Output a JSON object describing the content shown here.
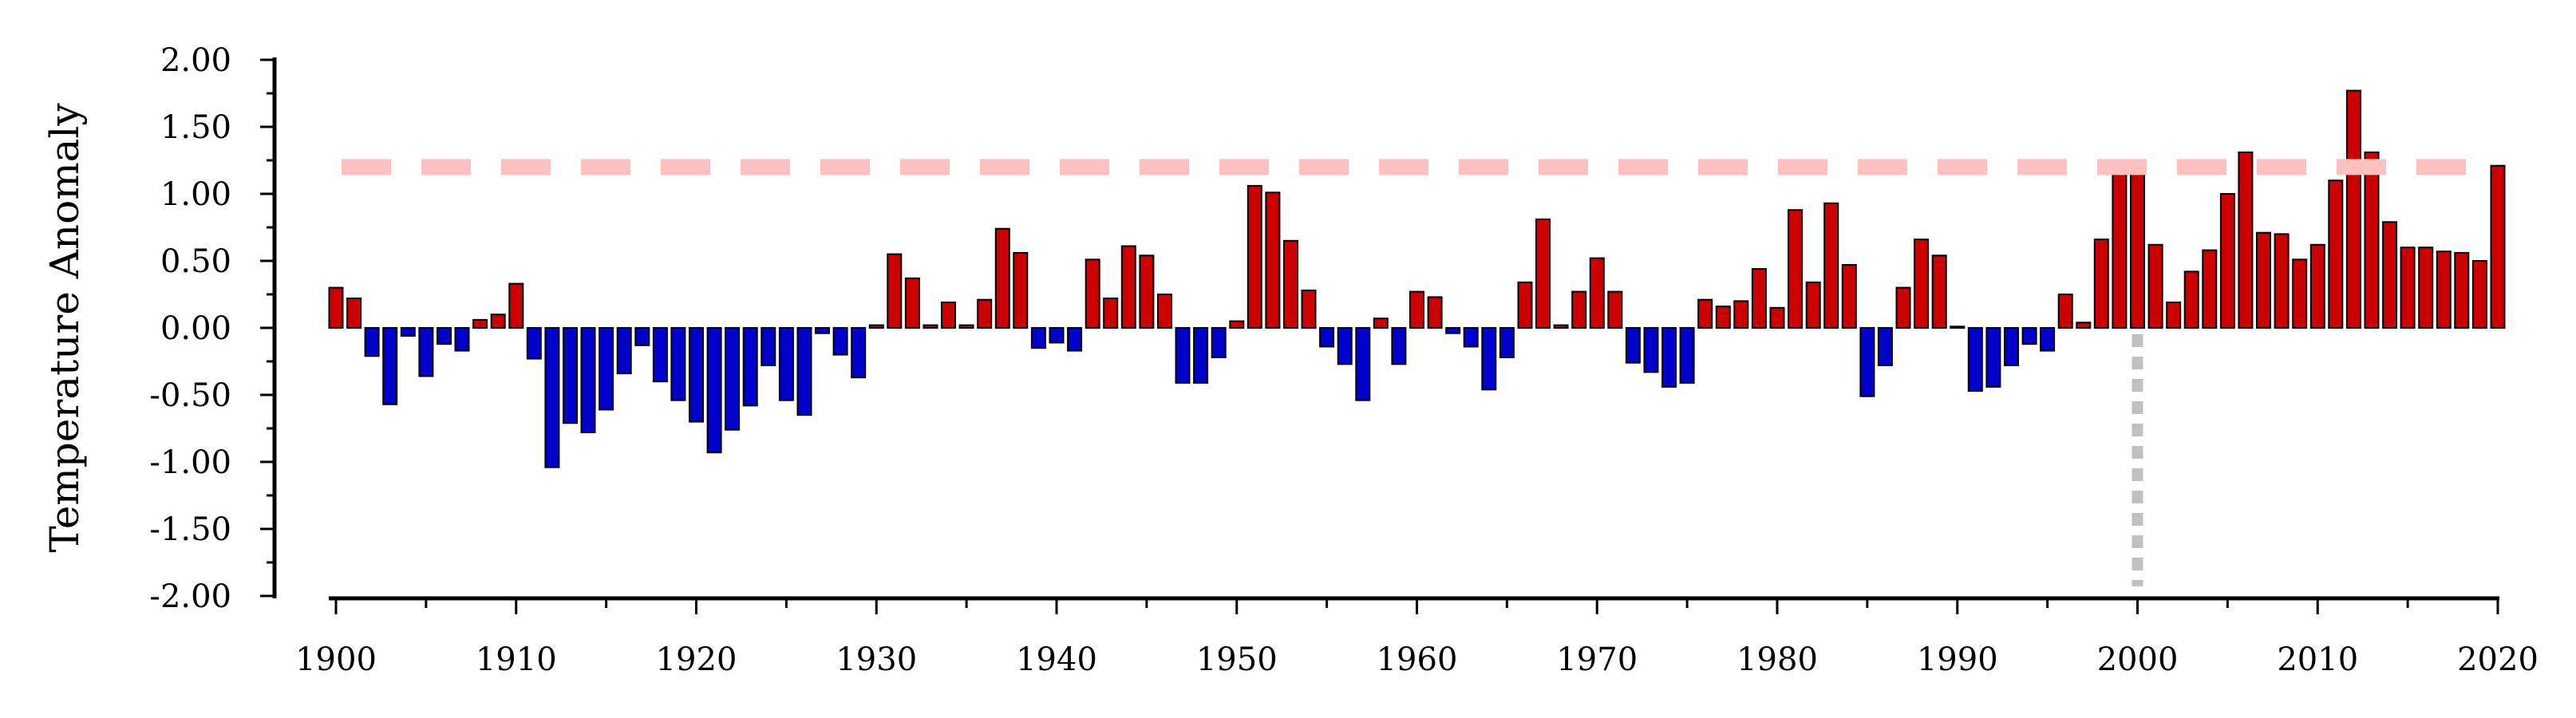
{
  "chart_data": {
    "type": "bar",
    "ylabel": "Temperature Anomaly",
    "xlabel": "",
    "ylim": [
      -2.0,
      2.0
    ],
    "xlim": [
      1899.5,
      2020.5
    ],
    "yticks": [
      "2.00",
      "1.50",
      "1.00",
      "0.50",
      "0.00",
      "-0.50",
      "-1.00",
      "-1.50",
      "-2.00"
    ],
    "xticks": [
      "1900",
      "1910",
      "1920",
      "1930",
      "1940",
      "1950",
      "1960",
      "1970",
      "1980",
      "1990",
      "2000",
      "2010",
      "2020"
    ],
    "threshold_line": 1.2,
    "vertical_reference_year": 2000,
    "colors": {
      "positive": "#cc0000",
      "negative": "#0000cc",
      "threshold": "#ffc0c0",
      "reference": "#c0c0c0"
    },
    "years": [
      1900,
      1901,
      1902,
      1903,
      1904,
      1905,
      1906,
      1907,
      1908,
      1909,
      1910,
      1911,
      1912,
      1913,
      1914,
      1915,
      1916,
      1917,
      1918,
      1919,
      1920,
      1921,
      1922,
      1923,
      1924,
      1925,
      1926,
      1927,
      1928,
      1929,
      1930,
      1931,
      1932,
      1933,
      1934,
      1935,
      1936,
      1937,
      1938,
      1939,
      1940,
      1941,
      1942,
      1943,
      1944,
      1945,
      1946,
      1947,
      1948,
      1949,
      1950,
      1951,
      1952,
      1953,
      1954,
      1955,
      1956,
      1957,
      1958,
      1959,
      1960,
      1961,
      1962,
      1963,
      1964,
      1965,
      1966,
      1967,
      1968,
      1969,
      1970,
      1971,
      1972,
      1973,
      1974,
      1975,
      1976,
      1977,
      1978,
      1979,
      1980,
      1981,
      1982,
      1983,
      1984,
      1985,
      1986,
      1987,
      1988,
      1989,
      1990,
      1991,
      1992,
      1993,
      1994,
      1995,
      1996,
      1997,
      1998,
      1999,
      2000,
      2001,
      2002,
      2003,
      2004,
      2005,
      2006,
      2007,
      2008,
      2009,
      2010,
      2011,
      2012,
      2013,
      2014,
      2015,
      2016,
      2017,
      2018,
      2019,
      2020
    ],
    "values": [
      0.3,
      0.22,
      -0.21,
      -0.57,
      -0.06,
      -0.36,
      -0.12,
      -0.17,
      0.06,
      0.1,
      0.33,
      -0.23,
      -1.04,
      -0.71,
      -0.78,
      -0.61,
      -0.34,
      -0.13,
      -0.4,
      -0.54,
      -0.7,
      -0.93,
      -0.76,
      -0.58,
      -0.28,
      -0.54,
      -0.65,
      -0.04,
      -0.2,
      -0.37,
      0.02,
      0.55,
      0.37,
      0.02,
      0.19,
      0.02,
      0.21,
      0.74,
      0.56,
      -0.15,
      -0.11,
      -0.17,
      0.51,
      0.22,
      0.61,
      0.54,
      0.25,
      -0.41,
      -0.41,
      -0.22,
      0.05,
      1.06,
      1.01,
      0.65,
      0.28,
      -0.14,
      -0.27,
      -0.54,
      0.07,
      -0.27,
      0.27,
      0.23,
      -0.04,
      -0.14,
      -0.46,
      -0.22,
      0.34,
      0.81,
      0.02,
      0.27,
      0.52,
      0.27,
      -0.26,
      -0.33,
      -0.44,
      -0.41,
      0.21,
      0.16,
      0.2,
      0.44,
      0.15,
      0.88,
      0.34,
      0.93,
      0.47,
      -0.51,
      -0.28,
      0.3,
      0.66,
      0.54,
      0.01,
      -0.47,
      -0.44,
      -0.28,
      -0.12,
      -0.17,
      0.25,
      0.04,
      0.66,
      1.2,
      1.24,
      0.62,
      0.19,
      0.42,
      0.58,
      1.0,
      1.31,
      0.71,
      0.7,
      0.51,
      0.62,
      1.1,
      1.77,
      1.31,
      0.79,
      0.6,
      0.6,
      0.57,
      0.56,
      0.5,
      1.21
    ]
  }
}
